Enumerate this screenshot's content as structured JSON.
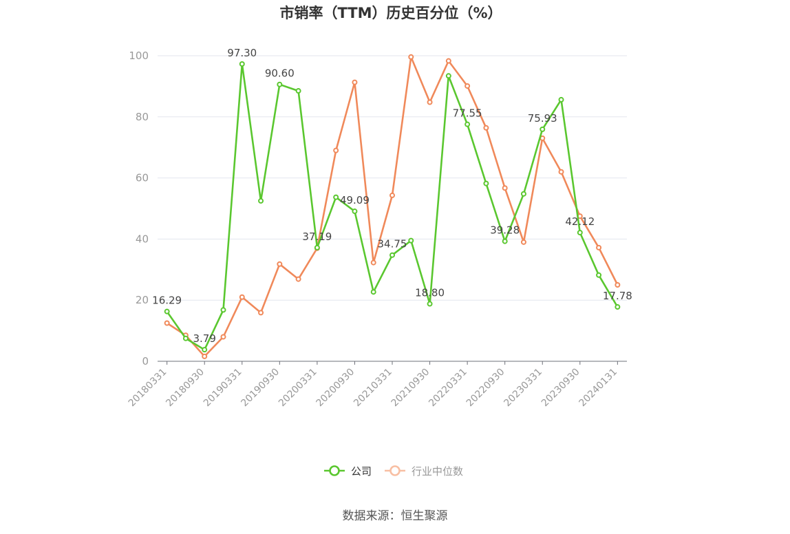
{
  "chart_data": {
    "type": "line",
    "title": "市销率（TTM）历史百分位（%）",
    "source": "数据来源：恒生聚源",
    "ylim": [
      0,
      100
    ],
    "y_ticks": [
      "0",
      "20",
      "40",
      "60",
      "80",
      "100"
    ],
    "x": [
      "20180331",
      "20180630",
      "20180930",
      "20181231",
      "20190331",
      "20190630",
      "20190930",
      "20191231",
      "20200331",
      "20200630",
      "20200930",
      "20201231",
      "20210331",
      "20210630",
      "20210930",
      "20211231",
      "20220331",
      "20220630",
      "20220930",
      "20221231",
      "20230331",
      "20230630",
      "20230930",
      "20231231",
      "20240131"
    ],
    "x_tick_labels": [
      "20180331",
      "20180930",
      "20190331",
      "20190930",
      "20200331",
      "20200930",
      "20210331",
      "20210930",
      "20220331",
      "20220930",
      "20230331",
      "20230930",
      "20240131"
    ],
    "grid": true,
    "legend_position": "bottom-center",
    "series": [
      {
        "name": "公司",
        "color": "#5ac72f",
        "values": [
          16.29,
          7.5,
          3.79,
          16.8,
          97.3,
          52.5,
          90.6,
          88.5,
          37.19,
          53.7,
          49.09,
          22.7,
          34.75,
          39.5,
          18.8,
          93.4,
          77.55,
          58.2,
          39.28,
          54.8,
          75.93,
          85.6,
          42.12,
          28.2,
          17.78
        ],
        "labels": [
          "16.29",
          null,
          "3.79",
          null,
          "97.30",
          null,
          "90.60",
          null,
          "37.19",
          null,
          "49.09",
          null,
          "34.75",
          null,
          "18.80",
          null,
          "77.55",
          null,
          "39.28",
          null,
          "75.93",
          null,
          "42.12",
          null,
          "17.78"
        ]
      },
      {
        "name": "行业中位数",
        "color": "#f0895a",
        "values": [
          12.5,
          8.5,
          1.6,
          8.0,
          21.0,
          15.9,
          31.8,
          26.9,
          37.0,
          69.0,
          91.3,
          32.3,
          54.3,
          99.6,
          84.8,
          98.3,
          90.1,
          76.4,
          56.7,
          39.0,
          73.0,
          62.0,
          47.5,
          37.2,
          25.0
        ]
      }
    ]
  }
}
